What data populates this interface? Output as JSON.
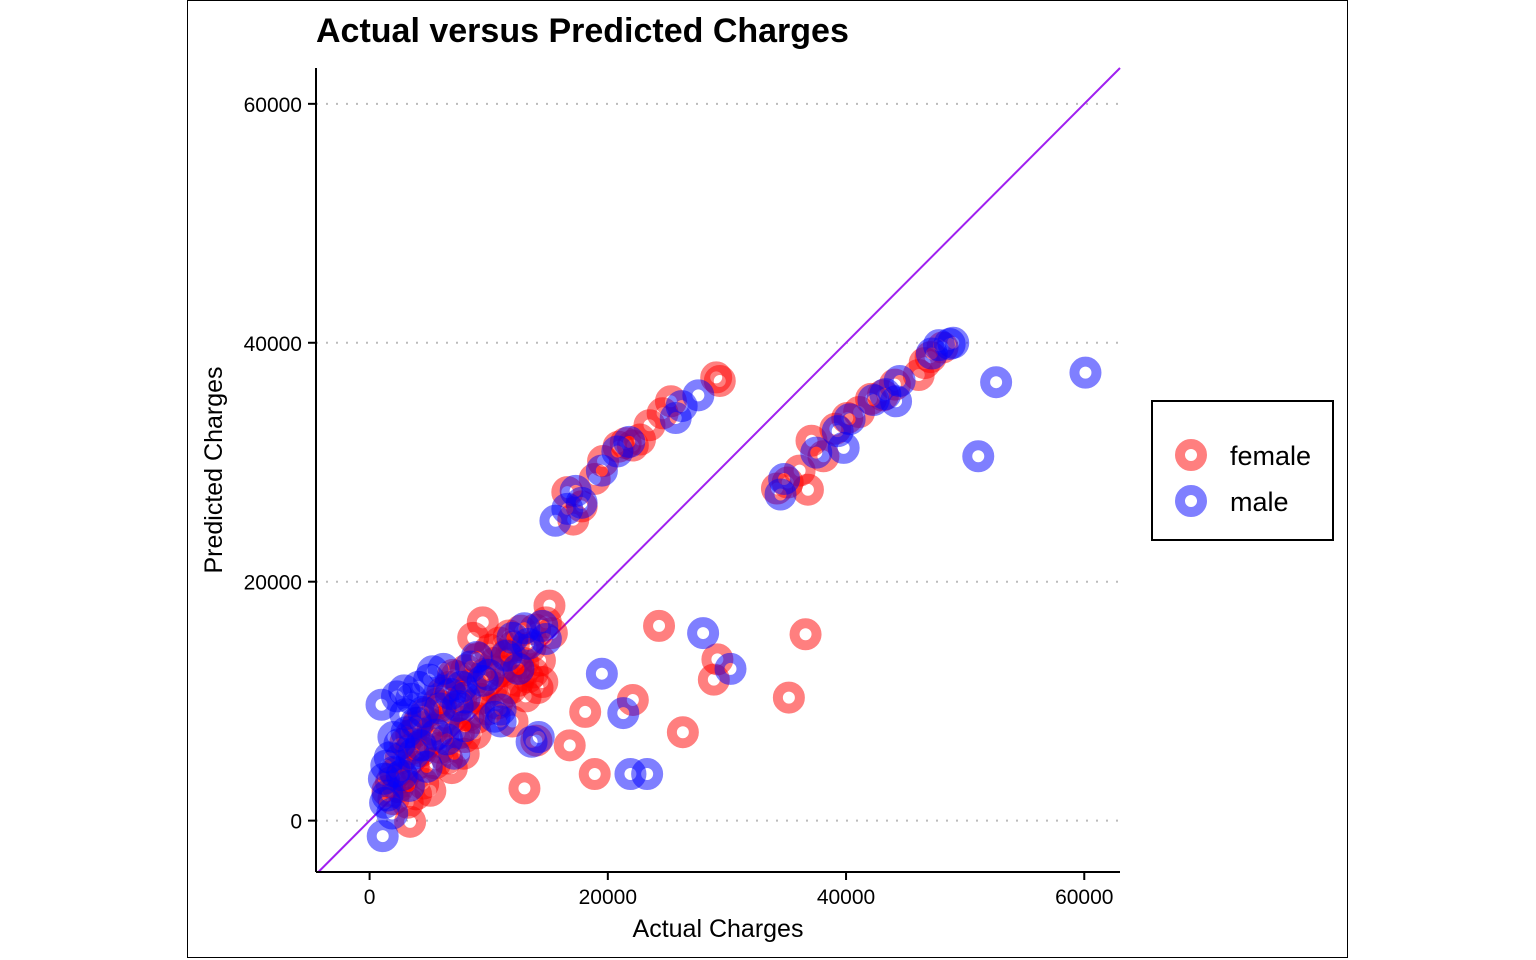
{
  "chart_data": {
    "type": "scatter",
    "title": "Actual versus Predicted Charges",
    "xlabel": "Actual Charges",
    "ylabel": "Predicted Charges",
    "xlim": [
      -4500,
      63000
    ],
    "ylim": [
      -4300,
      63000
    ],
    "xticks": [
      0,
      20000,
      40000,
      60000
    ],
    "yticks": [
      0,
      20000,
      40000,
      60000
    ],
    "xtick_labels": [
      "0",
      "20000",
      "40000",
      "60000"
    ],
    "ytick_labels": [
      "0",
      "20000",
      "40000",
      "60000"
    ],
    "grid": "horizontal dotted",
    "legend_position": "right",
    "reference_line": {
      "slope": 1,
      "intercept": 0,
      "color": "#a020f0"
    },
    "series": [
      {
        "name": "female",
        "color": "#ff0000",
        "points": [
          [
            1500,
            2500
          ],
          [
            1800,
            3200
          ],
          [
            2000,
            1800
          ],
          [
            2200,
            4000
          ],
          [
            2400,
            2800
          ],
          [
            2600,
            5200
          ],
          [
            2800,
            3600
          ],
          [
            3000,
            6500
          ],
          [
            3200,
            1500
          ],
          [
            3400,
            -100
          ],
          [
            3500,
            7200
          ],
          [
            3700,
            4500
          ],
          [
            3900,
            2200
          ],
          [
            4100,
            8200
          ],
          [
            4300,
            5800
          ],
          [
            4500,
            3100
          ],
          [
            4700,
            9000
          ],
          [
            4900,
            6600
          ],
          [
            5100,
            2500
          ],
          [
            5300,
            7600
          ],
          [
            5500,
            4800
          ],
          [
            5700,
            9800
          ],
          [
            5900,
            6100
          ],
          [
            6100,
            10700
          ],
          [
            6300,
            8300
          ],
          [
            6500,
            5200
          ],
          [
            6700,
            11200
          ],
          [
            6900,
            4400
          ],
          [
            7100,
            9300
          ],
          [
            7300,
            12100
          ],
          [
            7500,
            7300
          ],
          [
            7700,
            10100
          ],
          [
            7900,
            5600
          ],
          [
            8100,
            12600
          ],
          [
            8300,
            8800
          ],
          [
            8500,
            11400
          ],
          [
            8700,
            15300
          ],
          [
            8900,
            7300
          ],
          [
            9100,
            13600
          ],
          [
            9300,
            10200
          ],
          [
            9500,
            16600
          ],
          [
            9700,
            12300
          ],
          [
            9900,
            9300
          ],
          [
            10100,
            14300
          ],
          [
            10300,
            11200
          ],
          [
            10500,
            13200
          ],
          [
            10700,
            9800
          ],
          [
            10900,
            14900
          ],
          [
            11100,
            12500
          ],
          [
            11300,
            10700
          ],
          [
            11500,
            13900
          ],
          [
            11700,
            15500
          ],
          [
            11900,
            11100
          ],
          [
            12100,
            14600
          ],
          [
            12300,
            12900
          ],
          [
            12500,
            11700
          ],
          [
            12700,
            15900
          ],
          [
            12900,
            13200
          ],
          [
            13100,
            10400
          ],
          [
            13300,
            12000
          ],
          [
            13500,
            14500
          ],
          [
            13700,
            12400
          ],
          [
            13900,
            16000
          ],
          [
            14100,
            11100
          ],
          [
            14300,
            13400
          ],
          [
            14500,
            11600
          ],
          [
            14800,
            16600
          ],
          [
            15100,
            18000
          ],
          [
            15300,
            15700
          ],
          [
            3500,
            6000
          ],
          [
            4000,
            7900
          ],
          [
            6000,
            9600
          ],
          [
            8000,
            7000
          ],
          [
            9000,
            8600
          ],
          [
            7000,
            12200
          ],
          [
            12000,
            8300
          ],
          [
            13000,
            2700
          ],
          [
            14000,
            6700
          ],
          [
            16800,
            6300
          ],
          [
            18100,
            9100
          ],
          [
            18900,
            3900
          ],
          [
            22100,
            10100
          ],
          [
            24300,
            16300
          ],
          [
            26300,
            7400
          ],
          [
            28900,
            11800
          ],
          [
            29200,
            13500
          ],
          [
            35200,
            10300
          ],
          [
            36600,
            15600
          ],
          [
            16600,
            27500
          ],
          [
            17100,
            25200
          ],
          [
            17800,
            26300
          ],
          [
            18900,
            28600
          ],
          [
            19600,
            30100
          ],
          [
            20900,
            31300
          ],
          [
            21500,
            31600
          ],
          [
            22100,
            31400
          ],
          [
            22700,
            31900
          ],
          [
            23500,
            33100
          ],
          [
            24600,
            34100
          ],
          [
            25300,
            35100
          ],
          [
            29100,
            37100
          ],
          [
            29400,
            36800
          ],
          [
            34200,
            27800
          ],
          [
            35100,
            28300
          ],
          [
            36100,
            29300
          ],
          [
            36800,
            27700
          ],
          [
            37100,
            31800
          ],
          [
            38100,
            30500
          ],
          [
            39100,
            32800
          ],
          [
            40100,
            33700
          ],
          [
            41100,
            34200
          ],
          [
            42100,
            35300
          ],
          [
            43100,
            35600
          ],
          [
            44100,
            36500
          ],
          [
            46100,
            37300
          ],
          [
            46600,
            38300
          ],
          [
            47100,
            38800
          ],
          [
            48100,
            39600
          ]
        ]
      },
      {
        "name": "male",
        "color": "#0000ff",
        "points": [
          [
            1100,
            -1300
          ],
          [
            1200,
            3500
          ],
          [
            1300,
            1500
          ],
          [
            1400,
            4600
          ],
          [
            1500,
            2100
          ],
          [
            1700,
            5300
          ],
          [
            1900,
            600
          ],
          [
            2100,
            4100
          ],
          [
            2300,
            10400
          ],
          [
            2500,
            6400
          ],
          [
            2700,
            3800
          ],
          [
            2900,
            10900
          ],
          [
            3100,
            7400
          ],
          [
            3300,
            2900
          ],
          [
            3500,
            10200
          ],
          [
            3700,
            5600
          ],
          [
            3900,
            8200
          ],
          [
            4100,
            11200
          ],
          [
            4300,
            6300
          ],
          [
            4500,
            9100
          ],
          [
            4800,
            4500
          ],
          [
            5000,
            11800
          ],
          [
            5300,
            12500
          ],
          [
            5600,
            7200
          ],
          [
            5900,
            9400
          ],
          [
            6200,
            12700
          ],
          [
            6500,
            6800
          ],
          [
            6800,
            10600
          ],
          [
            7100,
            5600
          ],
          [
            7400,
            9600
          ],
          [
            7700,
            11200
          ],
          [
            8000,
            7900
          ],
          [
            8500,
            12900
          ],
          [
            9000,
            13700
          ],
          [
            9500,
            11700
          ],
          [
            10000,
            12200
          ],
          [
            10500,
            8700
          ],
          [
            11000,
            9300
          ],
          [
            11500,
            13800
          ],
          [
            12000,
            15300
          ],
          [
            12500,
            12700
          ],
          [
            13000,
            16100
          ],
          [
            13300,
            14800
          ],
          [
            13600,
            6600
          ],
          [
            14200,
            7000
          ],
          [
            14500,
            16300
          ],
          [
            14800,
            15200
          ],
          [
            1000,
            9700
          ],
          [
            2000,
            7000
          ],
          [
            3000,
            8900
          ],
          [
            8000,
            10300
          ],
          [
            11000,
            8300
          ],
          [
            19500,
            12300
          ],
          [
            21300,
            9000
          ],
          [
            21900,
            3900
          ],
          [
            23300,
            3900
          ],
          [
            28000,
            15700
          ],
          [
            30300,
            12700
          ],
          [
            15600,
            25100
          ],
          [
            16600,
            26100
          ],
          [
            17300,
            27600
          ],
          [
            17800,
            26600
          ],
          [
            19500,
            29300
          ],
          [
            20800,
            30900
          ],
          [
            21800,
            31700
          ],
          [
            25700,
            33700
          ],
          [
            26200,
            34700
          ],
          [
            27600,
            35600
          ],
          [
            34500,
            27300
          ],
          [
            34800,
            28600
          ],
          [
            37500,
            30800
          ],
          [
            39300,
            32600
          ],
          [
            39800,
            31200
          ],
          [
            40300,
            33600
          ],
          [
            42300,
            35200
          ],
          [
            43300,
            35700
          ],
          [
            44200,
            35100
          ],
          [
            44500,
            36800
          ],
          [
            47200,
            39100
          ],
          [
            47800,
            39800
          ],
          [
            48700,
            39900
          ],
          [
            49000,
            40000
          ],
          [
            51100,
            30500
          ],
          [
            52600,
            36700
          ],
          [
            60100,
            37500
          ]
        ]
      }
    ]
  }
}
